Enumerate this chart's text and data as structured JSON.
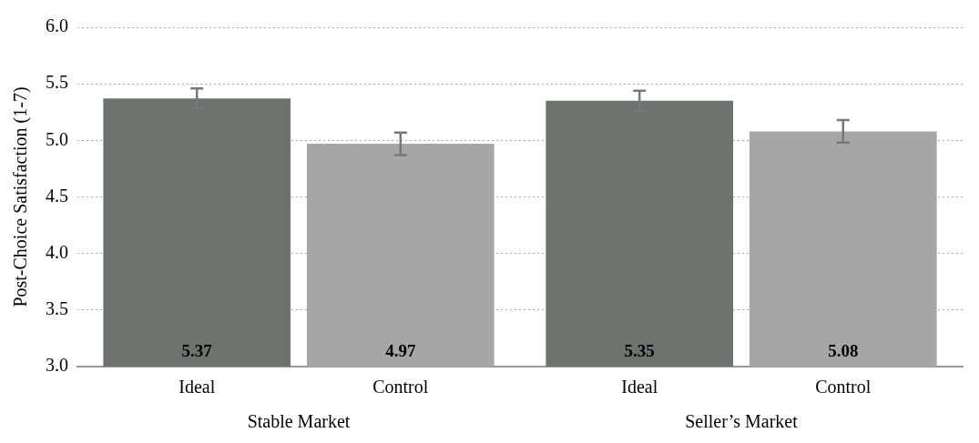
{
  "chart_data": {
    "type": "bar",
    "ylabel": "Post-Choice Satisfaction (1-7)",
    "categories": [
      "Stable Market",
      "Seller’s Market"
    ],
    "series": [
      {
        "name": "Ideal",
        "color": "#6e7370",
        "values": [
          5.37,
          5.35
        ],
        "errors": [
          0.09,
          0.09
        ]
      },
      {
        "name": "Control",
        "color": "#a6a6a6",
        "values": [
          4.97,
          5.08
        ],
        "errors": [
          0.1,
          0.1
        ]
      }
    ],
    "ylim": [
      3,
      6
    ],
    "yticks": [
      {
        "value": 3,
        "label": "3.0"
      },
      {
        "value": 3.5,
        "label": "3.5"
      },
      {
        "value": 4,
        "label": "4.0"
      },
      {
        "value": 4.5,
        "label": "4.5"
      },
      {
        "value": 5,
        "label": "5.0"
      },
      {
        "value": 5.5,
        "label": "5.5"
      },
      {
        "value": 6,
        "label": "6.0"
      }
    ],
    "grid": "y",
    "legend": false,
    "data_labels": true
  }
}
